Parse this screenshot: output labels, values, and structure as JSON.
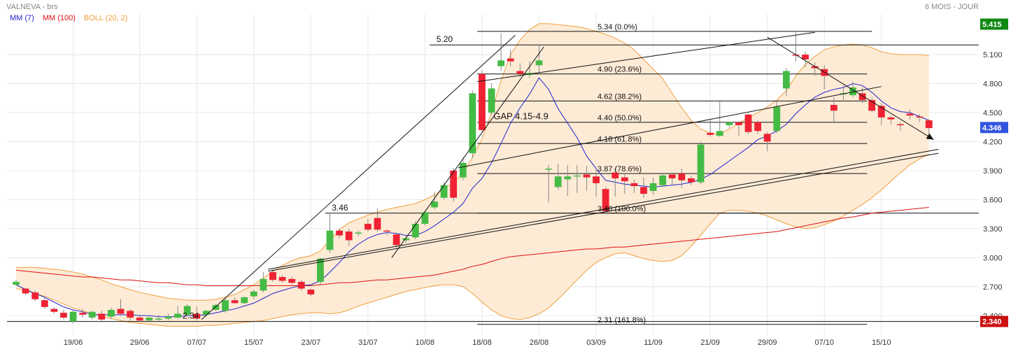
{
  "header": {
    "title": "VALNEVA - brs",
    "period": "6 MOIS - JOUR"
  },
  "indicators": [
    {
      "label": "MM (7)",
      "color": "#2222cc"
    },
    {
      "label": "MM (100)",
      "color": "#dd1111"
    },
    {
      "label": "BOLL (20, 2)",
      "color": "#f0a040"
    }
  ],
  "colors": {
    "up": "#44bb44",
    "down": "#ee2233",
    "boll_fill": "#fde7cf",
    "boll_line": "#f0a040",
    "mm7": "#2222cc",
    "mm100": "#dd1111",
    "badge_high": "#118811",
    "badge_last": "#3355dd",
    "badge_low": "#cc1111",
    "grid": "#e8e8e8"
  },
  "chart_data": {
    "type": "candlestick",
    "xlabel": "",
    "ylabel": "",
    "ylim": [
      2.2,
      5.52
    ],
    "yticks": [
      "5.100",
      "4.800",
      "4.500",
      "4.200",
      "3.900",
      "3.600",
      "3.300",
      "3.000",
      "2.700",
      "2.400"
    ],
    "xticks": [
      {
        "label": "19/06",
        "index": 6
      },
      {
        "label": "29/06",
        "index": 13
      },
      {
        "label": "07/07",
        "index": 19
      },
      {
        "label": "15/07",
        "index": 25
      },
      {
        "label": "23/07",
        "index": 31
      },
      {
        "label": "31/07",
        "index": 37
      },
      {
        "label": "10/08",
        "index": 43
      },
      {
        "label": "18/08",
        "index": 49
      },
      {
        "label": "26/08",
        "index": 55
      },
      {
        "label": "03/09",
        "index": 61
      },
      {
        "label": "11/09",
        "index": 67
      },
      {
        "label": "21/09",
        "index": 73
      },
      {
        "label": "29/09",
        "index": 79
      },
      {
        "label": "07/10",
        "index": 85
      },
      {
        "label": "15/10",
        "index": 91
      }
    ],
    "candles": [
      [
        2.72,
        2.75,
        2.77,
        2.71
      ],
      [
        2.68,
        2.63,
        2.69,
        2.61
      ],
      [
        2.64,
        2.57,
        2.66,
        2.55
      ],
      [
        2.56,
        2.49,
        2.58,
        2.47
      ],
      [
        2.47,
        2.44,
        2.49,
        2.42
      ],
      [
        2.43,
        2.38,
        2.46,
        2.36
      ],
      [
        2.34,
        2.44,
        2.46,
        2.32
      ],
      [
        2.43,
        2.41,
        2.47,
        2.38
      ],
      [
        2.38,
        2.44,
        2.45,
        2.36
      ],
      [
        2.42,
        2.36,
        2.45,
        2.34
      ],
      [
        2.39,
        2.46,
        2.48,
        2.37
      ],
      [
        2.47,
        2.42,
        2.57,
        2.4
      ],
      [
        2.45,
        2.38,
        2.47,
        2.35
      ],
      [
        2.38,
        2.35,
        2.41,
        2.33
      ],
      [
        2.35,
        2.38,
        2.39,
        2.33
      ],
      [
        2.36,
        2.37,
        2.41,
        2.34
      ],
      [
        2.37,
        2.39,
        2.42,
        2.35
      ],
      [
        2.38,
        2.42,
        2.5,
        2.37
      ],
      [
        2.41,
        2.5,
        2.52,
        2.39
      ],
      [
        2.42,
        2.37,
        2.5,
        2.35
      ],
      [
        2.41,
        2.45,
        2.46,
        2.39
      ],
      [
        2.46,
        2.51,
        2.52,
        2.45
      ],
      [
        2.45,
        2.56,
        2.58,
        2.43
      ],
      [
        2.56,
        2.53,
        2.59,
        2.52
      ],
      [
        2.53,
        2.59,
        2.6,
        2.52
      ],
      [
        2.6,
        2.65,
        2.67,
        2.57
      ],
      [
        2.66,
        2.78,
        2.85,
        2.64
      ],
      [
        2.85,
        2.77,
        2.88,
        2.75
      ],
      [
        2.8,
        2.76,
        2.82,
        2.74
      ],
      [
        2.78,
        2.74,
        2.8,
        2.72
      ],
      [
        2.75,
        2.68,
        2.77,
        2.66
      ],
      [
        2.67,
        2.62,
        2.68,
        2.6
      ],
      [
        2.75,
        2.99,
        3.0,
        2.72
      ],
      [
        3.08,
        3.28,
        3.46,
        3.05
      ],
      [
        3.28,
        3.23,
        3.3,
        3.2
      ],
      [
        3.27,
        3.18,
        3.3,
        3.12
      ],
      [
        3.25,
        3.26,
        3.28,
        3.22
      ],
      [
        3.35,
        3.29,
        3.4,
        3.27
      ],
      [
        3.41,
        3.29,
        3.51,
        3.27
      ],
      [
        3.28,
        3.27,
        3.29,
        3.23
      ],
      [
        3.24,
        3.13,
        3.25,
        3.1
      ],
      [
        3.18,
        3.2,
        3.22,
        3.15
      ],
      [
        3.21,
        3.35,
        3.38,
        3.19
      ],
      [
        3.35,
        3.47,
        3.49,
        3.33
      ],
      [
        3.52,
        3.58,
        3.68,
        3.5
      ],
      [
        3.62,
        3.75,
        3.78,
        3.6
      ],
      [
        3.9,
        3.62,
        3.93,
        3.58
      ],
      [
        3.83,
        3.98,
        4.04,
        3.8
      ],
      [
        4.08,
        4.7,
        4.73,
        4.03
      ],
      [
        4.9,
        4.32,
        4.94,
        4.3
      ],
      [
        4.5,
        4.75,
        4.8,
        4.48
      ],
      [
        4.98,
        5.04,
        5.32,
        4.93
      ],
      [
        5.06,
        5.03,
        5.15,
        4.98
      ],
      [
        4.93,
        4.9,
        5.01,
        4.87
      ],
      [
        4.89,
        4.91,
        5.03,
        4.86
      ],
      [
        4.99,
        5.04,
        5.21,
        4.9
      ],
      [
        3.91,
        3.92,
        3.96,
        3.57
      ],
      [
        3.73,
        3.84,
        3.97,
        3.7
      ],
      [
        3.81,
        3.84,
        3.96,
        3.64
      ],
      [
        3.85,
        3.85,
        3.96,
        3.67
      ],
      [
        3.86,
        3.83,
        3.95,
        3.69
      ],
      [
        3.84,
        3.77,
        3.93,
        3.63
      ],
      [
        3.71,
        3.48,
        3.73,
        3.46
      ],
      [
        3.88,
        3.82,
        3.93,
        3.63
      ],
      [
        3.83,
        3.79,
        3.87,
        3.66
      ],
      [
        3.77,
        3.74,
        3.81,
        3.67
      ],
      [
        3.73,
        3.66,
        3.83,
        3.62
      ],
      [
        3.69,
        3.77,
        3.83,
        3.65
      ],
      [
        3.75,
        3.85,
        3.87,
        3.73
      ],
      [
        3.86,
        3.82,
        3.88,
        3.75
      ],
      [
        3.87,
        3.8,
        3.92,
        3.72
      ],
      [
        3.82,
        3.78,
        3.85,
        3.75
      ],
      [
        3.78,
        4.17,
        4.2,
        3.76
      ],
      [
        4.29,
        4.27,
        4.42,
        4.25
      ],
      [
        4.26,
        4.31,
        4.63,
        4.25
      ],
      [
        4.37,
        4.4,
        4.4,
        4.34
      ],
      [
        4.4,
        4.37,
        4.41,
        4.26
      ],
      [
        4.48,
        4.3,
        4.49,
        4.28
      ],
      [
        4.4,
        4.31,
        4.42,
        4.28
      ],
      [
        4.28,
        4.2,
        4.3,
        4.1
      ],
      [
        4.31,
        4.56,
        4.62,
        4.29
      ],
      [
        4.75,
        4.93,
        4.96,
        4.67
      ],
      [
        5.1,
        5.09,
        5.33,
        5.03
      ],
      [
        5.1,
        5.05,
        5.13,
        4.97
      ],
      [
        4.98,
        4.96,
        5.02,
        4.88
      ],
      [
        4.95,
        4.88,
        4.99,
        4.74
      ],
      [
        4.58,
        4.52,
        4.66,
        4.4
      ],
      [
        4.69,
        4.7,
        4.78,
        4.63
      ],
      [
        4.68,
        4.76,
        4.82,
        4.66
      ],
      [
        4.7,
        4.63,
        4.76,
        4.6
      ],
      [
        4.63,
        4.52,
        4.66,
        4.5
      ],
      [
        4.57,
        4.45,
        4.6,
        4.37
      ],
      [
        4.45,
        4.43,
        4.47,
        4.38
      ],
      [
        4.38,
        4.37,
        4.4,
        4.31
      ],
      [
        4.49,
        4.47,
        4.53,
        4.43
      ],
      [
        4.46,
        4.45,
        4.48,
        4.4
      ],
      [
        4.42,
        4.34,
        4.43,
        4.28
      ]
    ],
    "series": [
      {
        "name": "MM (7)",
        "values": [
          2.72,
          2.67,
          2.63,
          2.59,
          2.54,
          2.49,
          2.46,
          2.44,
          2.41,
          2.41,
          2.41,
          2.41,
          2.41,
          2.4,
          2.4,
          2.39,
          2.39,
          2.39,
          2.4,
          2.4,
          2.41,
          2.43,
          2.45,
          2.47,
          2.5,
          2.53,
          2.58,
          2.63,
          2.66,
          2.69,
          2.71,
          2.72,
          2.76,
          2.85,
          2.95,
          3.06,
          3.14,
          3.2,
          3.24,
          3.26,
          3.25,
          3.23,
          3.23,
          3.27,
          3.33,
          3.4,
          3.47,
          3.56,
          3.72,
          3.82,
          3.98,
          4.18,
          4.39,
          4.55,
          4.69,
          4.86,
          4.74,
          4.54,
          4.39,
          4.24,
          4.05,
          3.92,
          3.8,
          3.78,
          3.76,
          3.75,
          3.74,
          3.73,
          3.74,
          3.75,
          3.76,
          3.78,
          3.81,
          3.86,
          3.93,
          4.0,
          4.07,
          4.14,
          4.22,
          4.26,
          4.31,
          4.38,
          4.49,
          4.58,
          4.66,
          4.71,
          4.74,
          4.76,
          4.8,
          4.78,
          4.71,
          4.62,
          4.55,
          4.51,
          4.5,
          4.46,
          4.42
        ]
      },
      {
        "name": "MM (100)",
        "values": [
          2.87,
          2.86,
          2.85,
          2.84,
          2.83,
          2.82,
          2.81,
          2.8,
          2.8,
          2.79,
          2.78,
          2.77,
          2.77,
          2.76,
          2.75,
          2.74,
          2.74,
          2.73,
          2.72,
          2.72,
          2.71,
          2.71,
          2.71,
          2.71,
          2.71,
          2.71,
          2.71,
          2.71,
          2.71,
          2.71,
          2.71,
          2.71,
          2.72,
          2.73,
          2.74,
          2.74,
          2.75,
          2.76,
          2.77,
          2.77,
          2.78,
          2.79,
          2.8,
          2.81,
          2.82,
          2.84,
          2.86,
          2.88,
          2.91,
          2.93,
          2.96,
          2.99,
          3.01,
          3.02,
          3.03,
          3.04,
          3.05,
          3.06,
          3.07,
          3.08,
          3.09,
          3.09,
          3.1,
          3.11,
          3.11,
          3.12,
          3.13,
          3.14,
          3.15,
          3.16,
          3.17,
          3.18,
          3.19,
          3.2,
          3.21,
          3.22,
          3.23,
          3.24,
          3.25,
          3.26,
          3.27,
          3.29,
          3.31,
          3.33,
          3.35,
          3.37,
          3.39,
          3.41,
          3.42,
          3.44,
          3.46,
          3.47,
          3.48,
          3.49,
          3.5,
          3.51,
          3.52
        ]
      },
      {
        "name": "BOLL upper",
        "values": [
          2.9,
          2.9,
          2.9,
          2.89,
          2.88,
          2.87,
          2.85,
          2.83,
          2.8,
          2.77,
          2.73,
          2.7,
          2.67,
          2.64,
          2.62,
          2.6,
          2.58,
          2.57,
          2.56,
          2.56,
          2.56,
          2.57,
          2.59,
          2.62,
          2.67,
          2.72,
          2.79,
          2.86,
          2.92,
          2.97,
          3.0,
          3.02,
          3.07,
          3.18,
          3.29,
          3.36,
          3.4,
          3.44,
          3.47,
          3.5,
          3.52,
          3.54,
          3.56,
          3.6,
          3.65,
          3.71,
          3.78,
          3.87,
          4.04,
          4.23,
          4.5,
          4.83,
          5.1,
          5.25,
          5.36,
          5.42,
          5.42,
          5.41,
          5.4,
          5.39,
          5.37,
          5.34,
          5.31,
          5.27,
          5.22,
          5.15,
          5.05,
          4.95,
          4.85,
          4.7,
          4.55,
          4.42,
          4.33,
          4.29,
          4.28,
          4.33,
          4.39,
          4.45,
          4.5,
          4.56,
          4.63,
          4.73,
          4.88,
          5.0,
          5.08,
          5.15,
          5.18,
          5.2,
          5.21,
          5.2,
          5.17,
          5.13,
          5.11,
          5.1,
          5.1,
          5.1,
          5.09
        ]
      },
      {
        "name": "BOLL lower",
        "values": [
          2.68,
          2.66,
          2.63,
          2.6,
          2.56,
          2.52,
          2.48,
          2.45,
          2.42,
          2.39,
          2.37,
          2.35,
          2.33,
          2.32,
          2.31,
          2.3,
          2.29,
          2.29,
          2.29,
          2.29,
          2.3,
          2.3,
          2.31,
          2.32,
          2.33,
          2.34,
          2.35,
          2.37,
          2.39,
          2.41,
          2.42,
          2.43,
          2.43,
          2.42,
          2.43,
          2.46,
          2.5,
          2.53,
          2.56,
          2.59,
          2.62,
          2.65,
          2.67,
          2.69,
          2.71,
          2.72,
          2.72,
          2.7,
          2.63,
          2.54,
          2.46,
          2.4,
          2.37,
          2.36,
          2.38,
          2.42,
          2.48,
          2.57,
          2.67,
          2.77,
          2.87,
          2.95,
          3.0,
          3.04,
          3.05,
          3.02,
          2.99,
          2.97,
          2.96,
          2.97,
          3.02,
          3.12,
          3.23,
          3.35,
          3.46,
          3.49,
          3.49,
          3.48,
          3.46,
          3.43,
          3.39,
          3.35,
          3.32,
          3.3,
          3.31,
          3.34,
          3.38,
          3.43,
          3.49,
          3.55,
          3.62,
          3.7,
          3.79,
          3.88,
          3.96,
          4.02,
          4.07
        ]
      }
    ],
    "fibonacci": [
      {
        "label": "5.34  (0.0%)",
        "value": 5.34
      },
      {
        "label": "4.90  (23.6%)",
        "value": 4.9
      },
      {
        "label": "4.62  (38.2%)",
        "value": 4.62
      },
      {
        "label": "4.40  (50.0%)",
        "value": 4.4
      },
      {
        "label": "4.18  (61.8%)",
        "value": 4.18
      },
      {
        "label": "3.87  (78.6%)",
        "value": 3.87
      },
      {
        "label": "3.46  (100.0%)",
        "value": 3.46
      },
      {
        "label": "2.31  (161.8%)",
        "value": 2.31
      }
    ],
    "level_annotations": [
      {
        "label": "5.20",
        "value": 5.2
      },
      {
        "label": "3.46",
        "value": 3.46
      },
      {
        "label": "2.34",
        "value": 2.34
      }
    ],
    "gap_annotation": "GAP 4.15-4.9",
    "trendlines": [
      {
        "from": [
          19.5,
          2.36
        ],
        "to": [
          52.5,
          5.3
        ]
      },
      {
        "from": [
          39.5,
          3.0
        ],
        "to": [
          55.5,
          5.18
        ]
      },
      {
        "from": [
          48.5,
          4.82
        ],
        "to": [
          84,
          5.33
        ]
      },
      {
        "from": [
          46.5,
          3.93
        ],
        "to": [
          91,
          4.77
        ]
      },
      {
        "from": [
          26.5,
          2.88
        ],
        "to": [
          97,
          4.12
        ]
      },
      {
        "from": [
          26.5,
          2.86
        ],
        "to": [
          97,
          4.08
        ]
      },
      {
        "from": [
          79,
          5.28
        ],
        "to": [
          96.5,
          4.22
        ]
      }
    ],
    "price_badges": [
      {
        "label": "5.415",
        "value": 5.415,
        "kind": "high"
      },
      {
        "label": "4.346",
        "value": 4.346,
        "kind": "last"
      },
      {
        "label": "2.340",
        "value": 2.34,
        "kind": "low"
      }
    ]
  }
}
